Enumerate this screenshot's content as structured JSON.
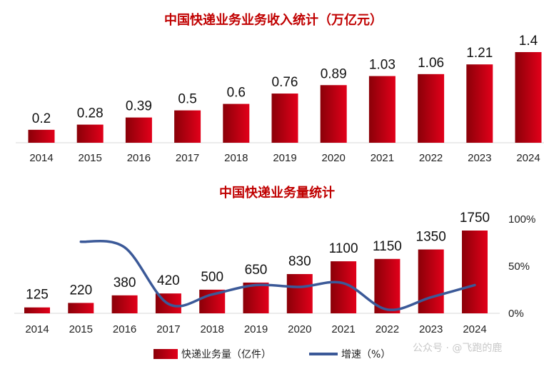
{
  "chart_data": [
    {
      "type": "bar",
      "title": "中国快递业务业务收入统计（万亿元）",
      "categories": [
        "2014",
        "2015",
        "2016",
        "2017",
        "2018",
        "2019",
        "2020",
        "2021",
        "2022",
        "2023",
        "2024"
      ],
      "values": [
        0.2,
        0.28,
        0.39,
        0.5,
        0.6,
        0.76,
        0.89,
        1.03,
        1.06,
        1.21,
        1.4
      ],
      "value_labels": [
        "0.2",
        "0.28",
        "0.39",
        "0.5",
        "0.6",
        "0.76",
        "0.89",
        "1.03",
        "1.06",
        "1.21",
        "1.4"
      ],
      "ylim": [
        0,
        1.4
      ],
      "grid": false,
      "bar_color": "#d0001a"
    },
    {
      "type": "bar+line",
      "title": "中国快递业务量统计",
      "categories": [
        "2014",
        "2015",
        "2016",
        "2017",
        "2018",
        "2019",
        "2020",
        "2021",
        "2022",
        "2023",
        "2024"
      ],
      "series": [
        {
          "name": "快递业务量（亿件）",
          "type": "bar",
          "axis": "left",
          "values": [
            125,
            220,
            380,
            420,
            500,
            650,
            830,
            1100,
            1150,
            1350,
            1750
          ],
          "color": "#d0001a"
        },
        {
          "name": "增速（%）",
          "type": "line",
          "axis": "right",
          "values": [
            null,
            76,
            70,
            10,
            20,
            30,
            28,
            32,
            4,
            17,
            30
          ],
          "color": "#3b5998"
        }
      ],
      "ylim_left": [
        0,
        1750
      ],
      "ylim_right": [
        0,
        100
      ],
      "right_ticks": [
        "0%",
        "50%",
        "100%"
      ],
      "right_tick_values": [
        0,
        50,
        100
      ],
      "legend": "bottom",
      "grid": false
    }
  ],
  "watermark": "公众号 · @飞跑的鹿"
}
